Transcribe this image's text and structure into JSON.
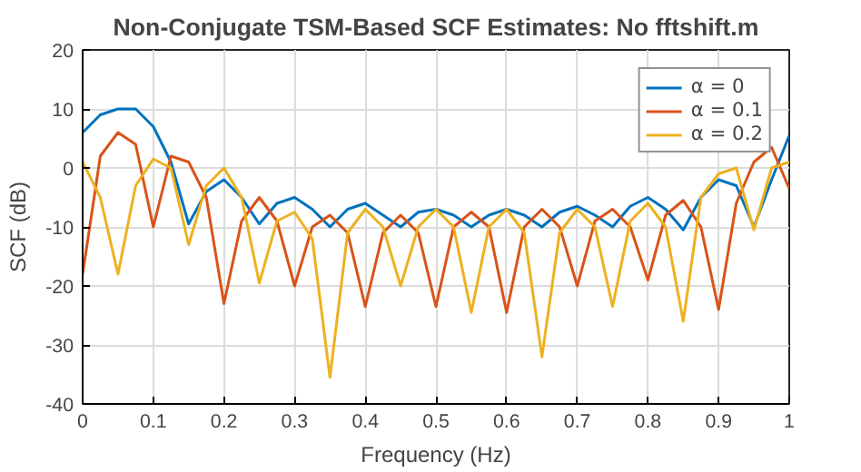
{
  "chart_data": {
    "type": "line",
    "title": "Non-Conjugate TSM-Based SCF Estimates: No fftshift.m",
    "xlabel": "Frequency (Hz)",
    "ylabel": "SCF (dB)",
    "x": [
      0,
      0.025,
      0.05,
      0.075,
      0.1,
      0.125,
      0.15,
      0.175,
      0.2,
      0.225,
      0.25,
      0.275,
      0.3,
      0.325,
      0.35,
      0.375,
      0.4,
      0.425,
      0.45,
      0.475,
      0.5,
      0.525,
      0.55,
      0.575,
      0.6,
      0.625,
      0.65,
      0.675,
      0.7,
      0.725,
      0.75,
      0.775,
      0.8,
      0.825,
      0.85,
      0.875,
      0.9,
      0.925,
      0.95,
      0.975,
      1
    ],
    "series": [
      {
        "name": "α = 0",
        "color": "#0072bd",
        "values": [
          6,
          9,
          10,
          10,
          7,
          1,
          -9.5,
          -4,
          -2,
          -5,
          -9.5,
          -6,
          -5,
          -7,
          -10,
          -7,
          -6,
          -8,
          -10,
          -7.5,
          -7,
          -8,
          -10,
          -8,
          -7,
          -8,
          -10,
          -7.5,
          -6.5,
          -8,
          -10,
          -6.5,
          -5,
          -7,
          -10.5,
          -5,
          -2,
          -3,
          -10,
          -2,
          5.5
        ]
      },
      {
        "name": "α = 0.1",
        "color": "#d95319",
        "values": [
          -18,
          2,
          6,
          4,
          -10,
          2,
          1,
          -5,
          -23,
          -9,
          -5,
          -9,
          -20,
          -10,
          -8,
          -11,
          -23.5,
          -11,
          -8,
          -11,
          -23.5,
          -10,
          -7.5,
          -10,
          -24.5,
          -10,
          -7,
          -10,
          -20,
          -9,
          -7,
          -10,
          -19,
          -8,
          -5.5,
          -10,
          -24,
          -6,
          1,
          3.5,
          -3.5
        ]
      },
      {
        "name": "α = 0.2",
        "color": "#edb120",
        "values": [
          1,
          -5,
          -18,
          -3,
          1.5,
          0,
          -13,
          -3,
          0,
          -5,
          -19.5,
          -9,
          -7.5,
          -12,
          -35.5,
          -11,
          -7,
          -10,
          -20,
          -10,
          -7,
          -10,
          -24.5,
          -10,
          -7,
          -11,
          -32,
          -11,
          -7,
          -10,
          -23.5,
          -9,
          -6,
          -10,
          -26,
          -5,
          -1,
          0,
          -10.5,
          0,
          1
        ]
      }
    ],
    "xlim": [
      0,
      1
    ],
    "ylim": [
      -40,
      20
    ],
    "xticks": [
      0,
      0.1,
      0.2,
      0.3,
      0.4,
      0.5,
      0.6,
      0.7,
      0.8,
      0.9,
      1
    ],
    "yticks": [
      -40,
      -30,
      -20,
      -10,
      0,
      10,
      20
    ],
    "grid": true,
    "legend": "top right",
    "line_style": "solid"
  }
}
